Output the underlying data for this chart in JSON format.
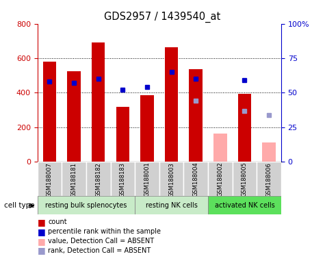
{
  "title": "GDS2957 / 1439540_at",
  "samples": [
    "GSM188007",
    "GSM188181",
    "GSM188182",
    "GSM188183",
    "GSM188001",
    "GSM188003",
    "GSM188004",
    "GSM188002",
    "GSM188005",
    "GSM188006"
  ],
  "red_bars": [
    580,
    525,
    690,
    320,
    385,
    665,
    535,
    0,
    395,
    0
  ],
  "pink_bars": [
    0,
    0,
    0,
    0,
    0,
    0,
    0,
    165,
    0,
    110
  ],
  "blue_pct": [
    58,
    57,
    60,
    52,
    54,
    65,
    60,
    0,
    59,
    0
  ],
  "lav_pct": [
    0,
    0,
    0,
    0,
    0,
    0,
    44,
    0,
    37,
    34
  ],
  "ylim_left": [
    0,
    800
  ],
  "ylim_right": [
    0,
    100
  ],
  "yticks_left": [
    0,
    200,
    400,
    600,
    800
  ],
  "yticks_right": [
    0,
    25,
    50,
    75,
    100
  ],
  "group_starts": [
    0,
    4,
    7
  ],
  "group_ends": [
    4,
    7,
    10
  ],
  "group_labels": [
    "resting bulk splenocytes",
    "resting NK cells",
    "activated NK cells"
  ],
  "group_colors": [
    "#c8ebc8",
    "#c8ebc8",
    "#5ce05c"
  ],
  "sample_box_color": "#d0d0d0",
  "red_color": "#cc0000",
  "pink_color": "#ffaaaa",
  "blue_color": "#0000cc",
  "lav_color": "#9999cc",
  "cell_type_label": "cell type",
  "legend_labels": [
    "count",
    "percentile rank within the sample",
    "value, Detection Call = ABSENT",
    "rank, Detection Call = ABSENT"
  ],
  "legend_colors": [
    "#cc0000",
    "#0000cc",
    "#ffaaaa",
    "#9999cc"
  ]
}
